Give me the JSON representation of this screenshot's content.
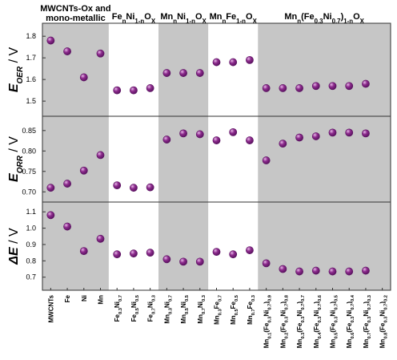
{
  "colors": {
    "shade": "#c6c6c6",
    "marker_fill": "#8e2c8e",
    "marker_edge": "#5a1260",
    "marker_highlight": "#e7b8e8",
    "frame": "#333333"
  },
  "chart_data": {
    "type": "scatter",
    "groups": [
      {
        "title_lines": [
          [
            {
              "t": "MWCNTs-Ox and"
            }
          ],
          [
            {
              "t": "mono-metallic"
            }
          ]
        ],
        "shaded": true,
        "start": 0,
        "count": 4
      },
      {
        "title_lines": [
          [
            {
              "t": "Fe"
            },
            {
              "t": "n",
              "sub": true
            },
            {
              "t": "Ni"
            },
            {
              "t": "1-n",
              "sub": true
            },
            {
              "t": "O"
            },
            {
              "t": "X",
              "sub": true
            }
          ]
        ],
        "shaded": false,
        "start": 4,
        "count": 3
      },
      {
        "title_lines": [
          [
            {
              "t": "Mn"
            },
            {
              "t": "n",
              "sub": true
            },
            {
              "t": "Ni"
            },
            {
              "t": "1-n",
              "sub": true
            },
            {
              "t": "O"
            },
            {
              "t": "X",
              "sub": true
            }
          ]
        ],
        "shaded": true,
        "start": 7,
        "count": 3
      },
      {
        "title_lines": [
          [
            {
              "t": "Mn"
            },
            {
              "t": "n",
              "sub": true
            },
            {
              "t": "Fe"
            },
            {
              "t": "1-n",
              "sub": true
            },
            {
              "t": "O"
            },
            {
              "t": "X",
              "sub": true
            }
          ]
        ],
        "shaded": false,
        "start": 10,
        "count": 3
      },
      {
        "title_lines": [
          [
            {
              "t": "Mn"
            },
            {
              "t": "n",
              "sub": true
            },
            {
              "t": "(Fe"
            },
            {
              "t": "0.3",
              "sub": true
            },
            {
              "t": "Ni"
            },
            {
              "t": "0.7",
              "sub": true
            },
            {
              "t": ")"
            },
            {
              "t": "1-n",
              "sub": true
            },
            {
              "t": "O"
            },
            {
              "t": "X",
              "sub": true
            }
          ]
        ],
        "shaded": true,
        "start": 13,
        "count": 8
      }
    ],
    "categories": [
      [
        {
          "t": "MWCNTs"
        }
      ],
      [
        {
          "t": "Fe"
        }
      ],
      [
        {
          "t": "Ni"
        }
      ],
      [
        {
          "t": "Mn"
        }
      ],
      [
        {
          "t": "Fe"
        },
        {
          "t": "0.3",
          "sub": true
        },
        {
          "t": "Ni"
        },
        {
          "t": "0.7",
          "sub": true
        }
      ],
      [
        {
          "t": "Fe"
        },
        {
          "t": "0.5",
          "sub": true
        },
        {
          "t": "Ni"
        },
        {
          "t": "0.5",
          "sub": true
        }
      ],
      [
        {
          "t": "Fe"
        },
        {
          "t": "0.7",
          "sub": true
        },
        {
          "t": "Ni"
        },
        {
          "t": "0.3",
          "sub": true
        }
      ],
      [
        {
          "t": "Mn"
        },
        {
          "t": "0.3",
          "sub": true
        },
        {
          "t": "Ni"
        },
        {
          "t": "0.7",
          "sub": true
        }
      ],
      [
        {
          "t": "Mn"
        },
        {
          "t": "0.5",
          "sub": true
        },
        {
          "t": "Ni"
        },
        {
          "t": "0.5",
          "sub": true
        }
      ],
      [
        {
          "t": "Mn"
        },
        {
          "t": "0.7",
          "sub": true
        },
        {
          "t": "Ni"
        },
        {
          "t": "0.3",
          "sub": true
        }
      ],
      [
        {
          "t": "Mn"
        },
        {
          "t": "0.3",
          "sub": true
        },
        {
          "t": "Fe"
        },
        {
          "t": "0.7",
          "sub": true
        }
      ],
      [
        {
          "t": "Mn"
        },
        {
          "t": "0.5",
          "sub": true
        },
        {
          "t": "Fe"
        },
        {
          "t": "0.5",
          "sub": true
        }
      ],
      [
        {
          "t": "Mn"
        },
        {
          "t": "0.7",
          "sub": true
        },
        {
          "t": "Fe"
        },
        {
          "t": "0.3",
          "sub": true
        }
      ],
      [
        {
          "t": "Mn"
        },
        {
          "t": "0.1",
          "sub": true
        },
        {
          "t": "(Fe"
        },
        {
          "t": "0.3",
          "sub": true
        },
        {
          "t": "Ni"
        },
        {
          "t": "0.7",
          "sub": true
        },
        {
          "t": ")"
        },
        {
          "t": "0.9",
          "sub": true
        }
      ],
      [
        {
          "t": "Mn"
        },
        {
          "t": "0.2",
          "sub": true
        },
        {
          "t": "(Fe"
        },
        {
          "t": "0.3",
          "sub": true
        },
        {
          "t": "Ni"
        },
        {
          "t": "0.7",
          "sub": true
        },
        {
          "t": ")"
        },
        {
          "t": "0.8",
          "sub": true
        }
      ],
      [
        {
          "t": "Mn"
        },
        {
          "t": "0.3",
          "sub": true
        },
        {
          "t": "(Fe"
        },
        {
          "t": "0.3",
          "sub": true
        },
        {
          "t": "Ni"
        },
        {
          "t": "0.7",
          "sub": true
        },
        {
          "t": ")"
        },
        {
          "t": "0.7",
          "sub": true
        }
      ],
      [
        {
          "t": "Mn"
        },
        {
          "t": "0.4",
          "sub": true
        },
        {
          "t": "(Fe"
        },
        {
          "t": "0.3",
          "sub": true
        },
        {
          "t": "Ni"
        },
        {
          "t": "0.7",
          "sub": true
        },
        {
          "t": ")"
        },
        {
          "t": "0.6",
          "sub": true
        }
      ],
      [
        {
          "t": "Mn"
        },
        {
          "t": "0.5",
          "sub": true
        },
        {
          "t": "(Fe"
        },
        {
          "t": "0.3",
          "sub": true
        },
        {
          "t": "Ni"
        },
        {
          "t": "0.7",
          "sub": true
        },
        {
          "t": ")"
        },
        {
          "t": "0.5",
          "sub": true
        }
      ],
      [
        {
          "t": "Mn"
        },
        {
          "t": "0.6",
          "sub": true
        },
        {
          "t": "(Fe"
        },
        {
          "t": "0.3",
          "sub": true
        },
        {
          "t": "Ni"
        },
        {
          "t": "0.7",
          "sub": true
        },
        {
          "t": ")"
        },
        {
          "t": "0.4",
          "sub": true
        }
      ],
      [
        {
          "t": "Mn"
        },
        {
          "t": "0.7",
          "sub": true
        },
        {
          "t": "(Fe"
        },
        {
          "t": "0.3",
          "sub": true
        },
        {
          "t": "Ni"
        },
        {
          "t": "0.7",
          "sub": true
        },
        {
          "t": ")"
        },
        {
          "t": "0.3",
          "sub": true
        }
      ],
      [
        {
          "t": "Mn"
        },
        {
          "t": "0.8",
          "sub": true
        },
        {
          "t": "(Fe"
        },
        {
          "t": "0.3",
          "sub": true
        },
        {
          "t": "Ni"
        },
        {
          "t": "0.7",
          "sub": true
        },
        {
          "t": ")"
        },
        {
          "t": "0.2",
          "sub": true
        }
      ]
    ],
    "panels": [
      {
        "ylabel_main": "E",
        "ylabel_sub": "OER",
        "ylabel_unit": " / V",
        "ylim": [
          1.43,
          1.86
        ],
        "yticks": [
          "1.5",
          "1.6",
          "1.7",
          "1.8"
        ],
        "values": [
          1.78,
          1.73,
          1.61,
          1.72,
          1.55,
          1.55,
          1.56,
          1.63,
          1.63,
          1.63,
          1.68,
          1.68,
          1.69,
          1.56,
          1.56,
          1.56,
          1.57,
          1.57,
          1.57,
          1.58,
          null
        ]
      },
      {
        "ylabel_main": "E",
        "ylabel_sub": "ORR",
        "ylabel_unit": " / V",
        "ylim": [
          0.675,
          0.885
        ],
        "yticks": [
          "0.70",
          "0.75",
          "0.80",
          "0.85"
        ],
        "values": [
          0.71,
          0.72,
          0.752,
          0.79,
          0.716,
          0.71,
          0.711,
          0.828,
          0.843,
          0.841,
          0.826,
          0.846,
          0.826,
          0.777,
          0.818,
          0.833,
          0.836,
          0.845,
          0.845,
          0.843,
          null
        ]
      },
      {
        "ylabel_main": "ΔE",
        "ylabel_sub": "",
        "ylabel_unit": " / V",
        "ylim": [
          0.62,
          1.16
        ],
        "yticks": [
          "0.7",
          "0.8",
          "0.9",
          "1.0",
          "1.1"
        ],
        "values": [
          1.08,
          1.01,
          0.86,
          0.935,
          0.84,
          0.845,
          0.85,
          0.81,
          0.795,
          0.795,
          0.855,
          0.84,
          0.865,
          0.785,
          0.75,
          0.735,
          0.74,
          0.735,
          0.735,
          0.74,
          null
        ]
      }
    ]
  }
}
